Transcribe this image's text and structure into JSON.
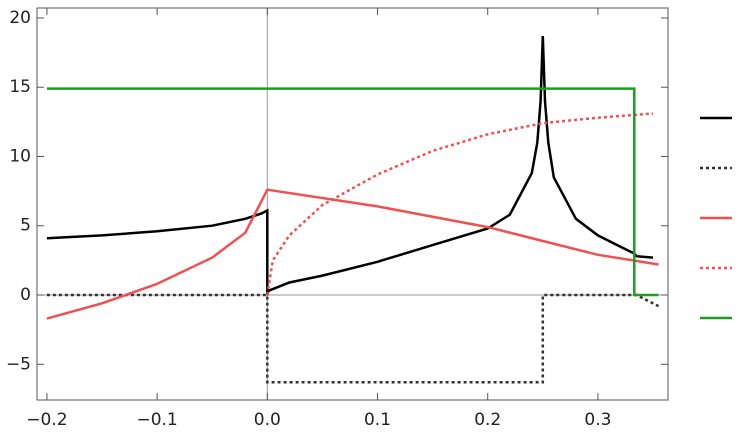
{
  "chart_data": {
    "type": "line",
    "xlim": [
      -0.209,
      0.3636
    ],
    "ylim": [
      -7.58,
      20.72
    ],
    "xticks": [
      {
        "value": -0.2,
        "label": "−0.2"
      },
      {
        "value": -0.1,
        "label": "−0.1"
      },
      {
        "value": 0,
        "label": "0.0"
      },
      0.1,
      0.2,
      0.3
    ],
    "yticks": [
      {
        "value": -5,
        "label": "−5"
      },
      0,
      5,
      10,
      15,
      20
    ],
    "series": [
      {
        "color": "#000000",
        "dash": "solid",
        "x": [
          -0.2,
          -0.15,
          -0.1,
          -0.05,
          -0.02,
          -0.005,
          0,
          0,
          0.001,
          0.02,
          0.05,
          0.1,
          0.15,
          0.2,
          0.22,
          0.24,
          0.245,
          0.248,
          0.25,
          0.252,
          0.255,
          0.26,
          0.28,
          0.3,
          0.32,
          0.333,
          0.335,
          0.35
        ],
        "values": [
          4.1,
          4.3,
          4.6,
          5.0,
          5.5,
          5.9,
          6.1,
          0,
          0.3,
          0.9,
          1.4,
          2.4,
          3.6,
          4.8,
          5.8,
          8.8,
          11,
          14,
          18.7,
          14,
          11,
          8.5,
          5.5,
          4.3,
          3.5,
          3.0,
          2.8,
          2.7
        ]
      },
      {
        "color": "#333333",
        "dash": "dotted",
        "x": [
          -0.2,
          0,
          0,
          0.25,
          0.25,
          0.335,
          0.355
        ],
        "values": [
          0,
          0,
          -6.3,
          -6.3,
          0,
          0,
          -0.8
        ]
      },
      {
        "color": "#f05050",
        "dash": "solid",
        "x": [
          -0.2,
          -0.15,
          -0.1,
          -0.05,
          -0.02,
          0,
          0.1,
          0.2,
          0.25,
          0.3,
          0.355
        ],
        "values": [
          -1.7,
          -0.6,
          0.8,
          2.7,
          4.5,
          7.6,
          6.4,
          4.9,
          3.9,
          2.9,
          2.2
        ]
      },
      {
        "color": "#f05050",
        "dash": "dotted",
        "x": [
          0,
          0.005,
          0.02,
          0.05,
          0.1,
          0.15,
          0.2,
          0.25,
          0.3,
          0.35
        ],
        "values": [
          0,
          2.5,
          4.3,
          6.5,
          8.7,
          10.4,
          11.6,
          12.4,
          12.8,
          13.1
        ]
      },
      {
        "color": "#1e9e1e",
        "dash": "solid",
        "x": [
          -0.2,
          0.333,
          0.333,
          0.355
        ],
        "values": [
          14.9,
          14.9,
          0,
          0
        ]
      }
    ]
  }
}
